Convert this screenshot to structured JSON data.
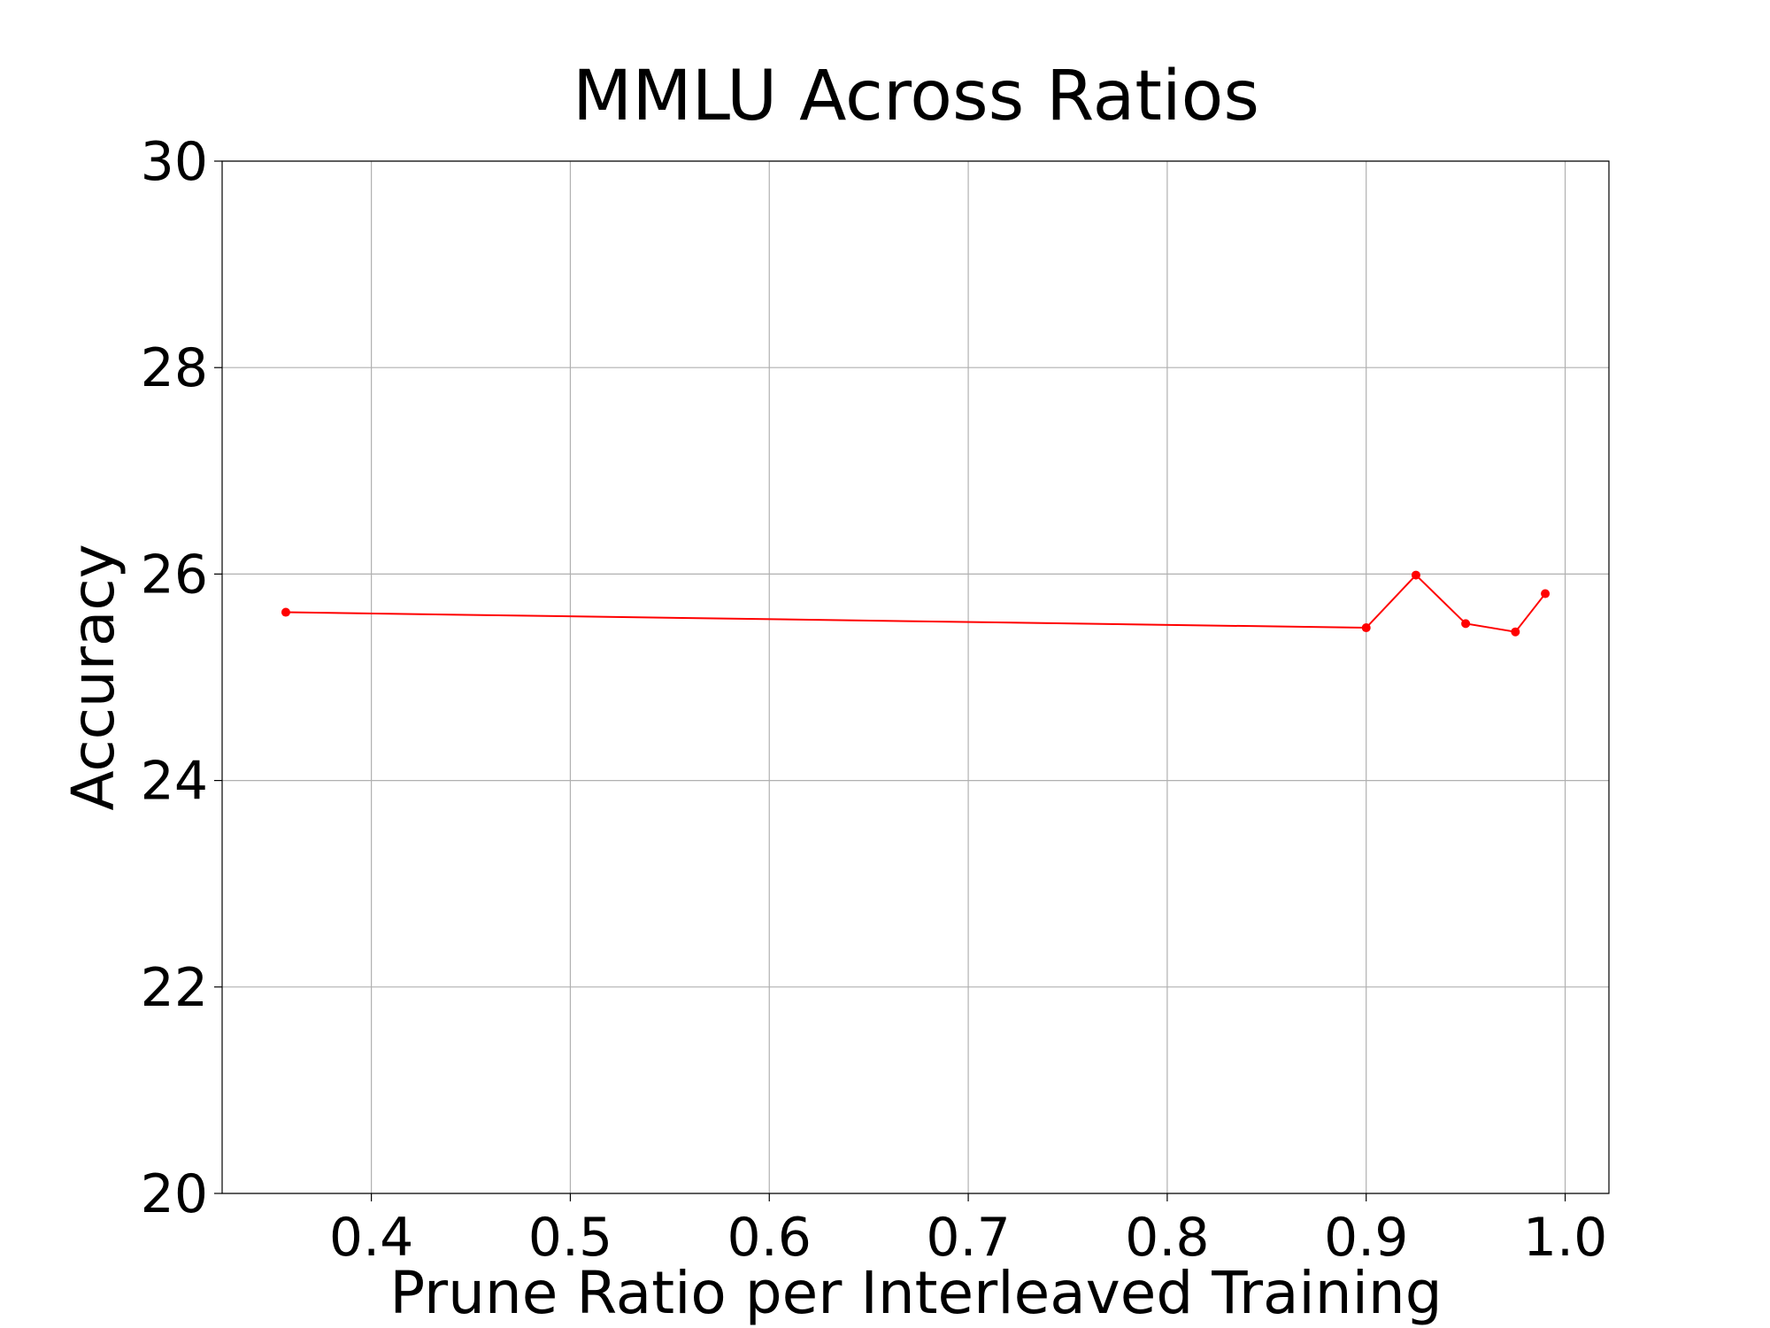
{
  "chart_data": {
    "type": "line",
    "title": "MMLU Across Ratios",
    "x_label": "Prune Ratio per Interleaved Training",
    "y_label": "Accuracy",
    "x": [
      0.357,
      0.9,
      0.925,
      0.95,
      0.975,
      0.99
    ],
    "series": [
      {
        "color": "#ff0000",
        "values": [
          25.63,
          25.48,
          25.99,
          25.52,
          25.44,
          25.81
        ]
      }
    ],
    "xlim": [
      0.325,
      1.022
    ],
    "ylim": [
      20,
      30
    ],
    "xticks": [
      0.4,
      0.5,
      0.6,
      0.7,
      0.8,
      0.9,
      {
        "value": 1,
        "label": "1.0"
      }
    ],
    "yticks": [
      20,
      22,
      24,
      26,
      28,
      30
    ],
    "grid": true
  }
}
